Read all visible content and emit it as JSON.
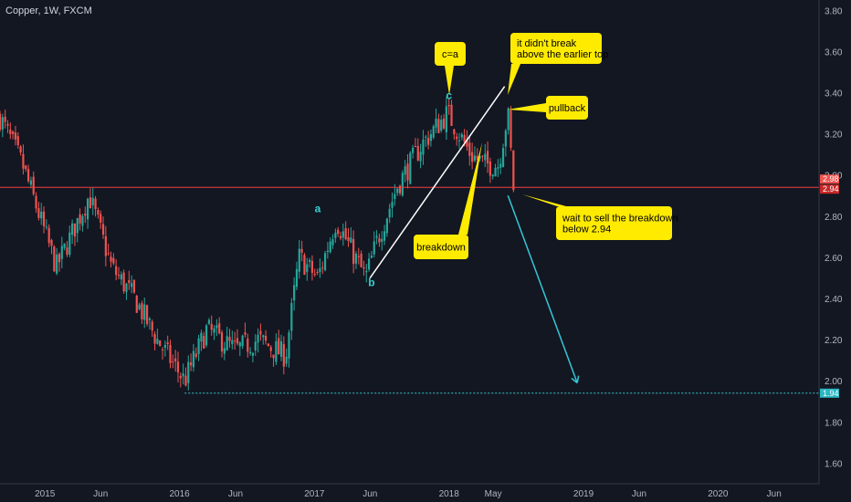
{
  "header": {
    "symbol_title": "Copper, 1W, FXCM"
  },
  "colors": {
    "background": "#131722",
    "up": "#26a69a",
    "down": "#ef5350",
    "callout": "#ffeb00",
    "wave_label": "#33d1d1",
    "support_line": "#ef3e3e",
    "target_line": "#33c7c7",
    "trendline": "#ffffff",
    "projection_arrow": "#33c7d6"
  },
  "chart_data": {
    "type": "candlestick",
    "title": "Copper, 1W, FXCM",
    "ylim": [
      1.5,
      3.85
    ],
    "y_ticks": [
      "3.80",
      "3.60",
      "3.40",
      "3.20",
      "3.00",
      "2.80",
      "2.60",
      "2.40",
      "2.20",
      "2.00",
      "1.80",
      "1.60"
    ],
    "y_tick_values": [
      3.8,
      3.6,
      3.4,
      3.2,
      3.0,
      2.8,
      2.6,
      2.4,
      2.2,
      2.0,
      1.8,
      1.6
    ],
    "x_ticks": [
      "2015",
      "Jun",
      "2016",
      "Jun",
      "2017",
      "Jun",
      "2018",
      "May",
      "2019",
      "Jun",
      "2020",
      "Jun"
    ],
    "x_tick_dates": [
      "2015-01-01",
      "2015-06-01",
      "2016-01-01",
      "2016-06-01",
      "2017-01-01",
      "2017-06-01",
      "2018-01-01",
      "2018-05-01",
      "2019-01-01",
      "2019-06-01",
      "2020-01-01",
      "2020-06-01"
    ],
    "price_path": {
      "dates": [
        "2014-09-01",
        "2014-11-01",
        "2015-02-01",
        "2015-05-01",
        "2015-07-01",
        "2015-09-01",
        "2015-11-01",
        "2016-01-15",
        "2016-03-15",
        "2016-06-01",
        "2016-08-01",
        "2016-10-15",
        "2016-11-20",
        "2017-01-10",
        "2017-03-01",
        "2017-05-20",
        "2017-06-20",
        "2017-08-15",
        "2017-10-20",
        "2017-12-28",
        "2018-03-01",
        "2018-04-10",
        "2018-05-15",
        "2018-06-10",
        "2018-06-25"
      ],
      "close": [
        3.28,
        3.05,
        2.55,
        2.9,
        2.55,
        2.4,
        2.2,
        2.0,
        2.25,
        2.15,
        2.2,
        2.12,
        2.6,
        2.5,
        2.78,
        2.5,
        2.68,
        2.95,
        3.15,
        3.3,
        3.1,
        3.05,
        3.05,
        3.3,
        2.94
      ]
    },
    "last_prices": [
      "2.98",
      "2.94"
    ],
    "support_level": 2.94,
    "support_label": "2.94",
    "target_level": 1.94,
    "target_label": "1.94",
    "target_line_start": "2016-01-15",
    "trendline": {
      "from": {
        "date": "2017-06-01",
        "price": 2.5
      },
      "to": {
        "date": "2018-06-01",
        "price": 3.43
      }
    },
    "projection_arrow": {
      "from": {
        "date": "2018-06-10",
        "price": 2.9
      },
      "to": {
        "date": "2018-12-15",
        "price": 1.99
      }
    },
    "wave_labels": [
      {
        "text": "a",
        "date": "2017-01-10",
        "price": 2.82
      },
      {
        "text": "b",
        "date": "2017-06-05",
        "price": 2.46
      },
      {
        "text": "c",
        "date": "2018-01-01",
        "price": 3.37
      }
    ],
    "callouts": [
      {
        "text": [
          "c=a"
        ]
      },
      {
        "text": [
          "it didn't break",
          "above the earlier top"
        ]
      },
      {
        "text": [
          "pullback"
        ]
      },
      {
        "text": [
          "breakdown"
        ]
      },
      {
        "text": [
          "wait to sell the breakdown",
          "below 2.94"
        ]
      }
    ]
  }
}
